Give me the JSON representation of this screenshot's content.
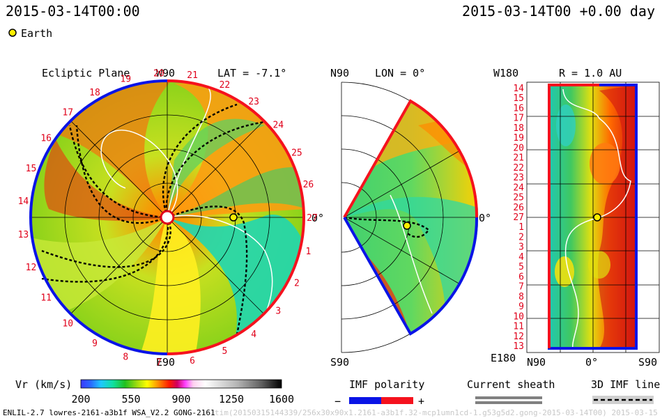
{
  "header": {
    "datetime_left": "2015-03-14T00:00",
    "datetime_right": "2015-03-14T00 +0.00 day"
  },
  "legend": {
    "earth_label": "Earth"
  },
  "panels": {
    "ecliptic": {
      "title": "Ecliptic Plane",
      "lat_label": "LAT = -7.1°",
      "w90": "W90",
      "e90": "E90",
      "zero": "0°",
      "rotation_labels": [
        "1",
        "2",
        "3",
        "4",
        "5",
        "6",
        "7",
        "8",
        "9",
        "10",
        "11",
        "12",
        "13",
        "14",
        "15",
        "16",
        "17",
        "18",
        "19",
        "20",
        "21",
        "22",
        "23",
        "24",
        "25",
        "26",
        "27"
      ]
    },
    "meridional": {
      "lon_label": "LON = 0°",
      "n90": "N90",
      "s90": "S90",
      "zero": "0°"
    },
    "synoptic": {
      "r_label": "R = 1.0 AU",
      "w180": "W180",
      "e180": "E180",
      "n90": "N90",
      "zero": "0°",
      "s90": "S90",
      "y_labels": [
        "14",
        "15",
        "16",
        "17",
        "18",
        "19",
        "20",
        "21",
        "22",
        "23",
        "24",
        "25",
        "26",
        "27",
        "1",
        "2",
        "3",
        "4",
        "5",
        "6",
        "7",
        "8",
        "9",
        "10",
        "11",
        "12",
        "13"
      ]
    }
  },
  "colorbar": {
    "label": "Vr (km/s)",
    "ticks": [
      "200",
      "550",
      "900",
      "1250",
      "1600"
    ],
    "range": [
      200,
      1600
    ]
  },
  "keys": {
    "imf_polarity": {
      "label": "IMF polarity",
      "minus": "−",
      "plus": "+",
      "neg_color": "#0a14e6",
      "pos_color": "#f5121e"
    },
    "current_sheath": {
      "label": "Current sheath"
    },
    "imf_line": {
      "label": "3D IMF line"
    }
  },
  "footer": {
    "left": "ENLIL-2.7 lowres-2161-a3b1f WSA_V2.2 GONG-2161",
    "right": "tim(20150315144339/256x30x90x1.2161-a3b1f.32-mcp1umn1cd-1.g53g5d2.gong-2015-03-14T00)     2015-03-15"
  },
  "chart_data": {
    "type": "heatmap",
    "quantity": "Vr (km/s)",
    "color_range": [
      200,
      1600
    ],
    "earth": {
      "synoptic_rotation_label": "27",
      "position": "0°"
    }
  }
}
